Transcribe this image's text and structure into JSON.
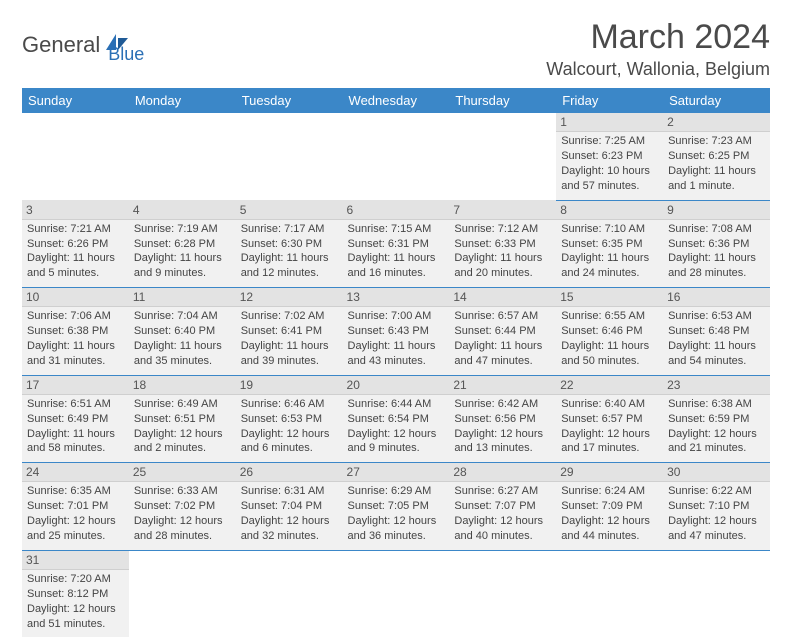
{
  "logo": {
    "text1": "General",
    "text2": "Blue"
  },
  "title": "March 2024",
  "location": "Walcourt, Wallonia, Belgium",
  "colors": {
    "header_bg": "#3b87c8",
    "header_fg": "#ffffff",
    "row_border": "#3b87c8",
    "daynum_bg": "#e3e3e3",
    "week_bg": "#f1f1f1",
    "logo_blue": "#2a6fb5",
    "text_gray": "#4a4a4a"
  },
  "day_headers": [
    "Sunday",
    "Monday",
    "Tuesday",
    "Wednesday",
    "Thursday",
    "Friday",
    "Saturday"
  ],
  "weeks": [
    [
      null,
      null,
      null,
      null,
      null,
      {
        "n": "1",
        "sr": "Sunrise: 7:25 AM",
        "ss": "Sunset: 6:23 PM",
        "dl": "Daylight: 10 hours and 57 minutes."
      },
      {
        "n": "2",
        "sr": "Sunrise: 7:23 AM",
        "ss": "Sunset: 6:25 PM",
        "dl": "Daylight: 11 hours and 1 minute."
      }
    ],
    [
      {
        "n": "3",
        "sr": "Sunrise: 7:21 AM",
        "ss": "Sunset: 6:26 PM",
        "dl": "Daylight: 11 hours and 5 minutes."
      },
      {
        "n": "4",
        "sr": "Sunrise: 7:19 AM",
        "ss": "Sunset: 6:28 PM",
        "dl": "Daylight: 11 hours and 9 minutes."
      },
      {
        "n": "5",
        "sr": "Sunrise: 7:17 AM",
        "ss": "Sunset: 6:30 PM",
        "dl": "Daylight: 11 hours and 12 minutes."
      },
      {
        "n": "6",
        "sr": "Sunrise: 7:15 AM",
        "ss": "Sunset: 6:31 PM",
        "dl": "Daylight: 11 hours and 16 minutes."
      },
      {
        "n": "7",
        "sr": "Sunrise: 7:12 AM",
        "ss": "Sunset: 6:33 PM",
        "dl": "Daylight: 11 hours and 20 minutes."
      },
      {
        "n": "8",
        "sr": "Sunrise: 7:10 AM",
        "ss": "Sunset: 6:35 PM",
        "dl": "Daylight: 11 hours and 24 minutes."
      },
      {
        "n": "9",
        "sr": "Sunrise: 7:08 AM",
        "ss": "Sunset: 6:36 PM",
        "dl": "Daylight: 11 hours and 28 minutes."
      }
    ],
    [
      {
        "n": "10",
        "sr": "Sunrise: 7:06 AM",
        "ss": "Sunset: 6:38 PM",
        "dl": "Daylight: 11 hours and 31 minutes."
      },
      {
        "n": "11",
        "sr": "Sunrise: 7:04 AM",
        "ss": "Sunset: 6:40 PM",
        "dl": "Daylight: 11 hours and 35 minutes."
      },
      {
        "n": "12",
        "sr": "Sunrise: 7:02 AM",
        "ss": "Sunset: 6:41 PM",
        "dl": "Daylight: 11 hours and 39 minutes."
      },
      {
        "n": "13",
        "sr": "Sunrise: 7:00 AM",
        "ss": "Sunset: 6:43 PM",
        "dl": "Daylight: 11 hours and 43 minutes."
      },
      {
        "n": "14",
        "sr": "Sunrise: 6:57 AM",
        "ss": "Sunset: 6:44 PM",
        "dl": "Daylight: 11 hours and 47 minutes."
      },
      {
        "n": "15",
        "sr": "Sunrise: 6:55 AM",
        "ss": "Sunset: 6:46 PM",
        "dl": "Daylight: 11 hours and 50 minutes."
      },
      {
        "n": "16",
        "sr": "Sunrise: 6:53 AM",
        "ss": "Sunset: 6:48 PM",
        "dl": "Daylight: 11 hours and 54 minutes."
      }
    ],
    [
      {
        "n": "17",
        "sr": "Sunrise: 6:51 AM",
        "ss": "Sunset: 6:49 PM",
        "dl": "Daylight: 11 hours and 58 minutes."
      },
      {
        "n": "18",
        "sr": "Sunrise: 6:49 AM",
        "ss": "Sunset: 6:51 PM",
        "dl": "Daylight: 12 hours and 2 minutes."
      },
      {
        "n": "19",
        "sr": "Sunrise: 6:46 AM",
        "ss": "Sunset: 6:53 PM",
        "dl": "Daylight: 12 hours and 6 minutes."
      },
      {
        "n": "20",
        "sr": "Sunrise: 6:44 AM",
        "ss": "Sunset: 6:54 PM",
        "dl": "Daylight: 12 hours and 9 minutes."
      },
      {
        "n": "21",
        "sr": "Sunrise: 6:42 AM",
        "ss": "Sunset: 6:56 PM",
        "dl": "Daylight: 12 hours and 13 minutes."
      },
      {
        "n": "22",
        "sr": "Sunrise: 6:40 AM",
        "ss": "Sunset: 6:57 PM",
        "dl": "Daylight: 12 hours and 17 minutes."
      },
      {
        "n": "23",
        "sr": "Sunrise: 6:38 AM",
        "ss": "Sunset: 6:59 PM",
        "dl": "Daylight: 12 hours and 21 minutes."
      }
    ],
    [
      {
        "n": "24",
        "sr": "Sunrise: 6:35 AM",
        "ss": "Sunset: 7:01 PM",
        "dl": "Daylight: 12 hours and 25 minutes."
      },
      {
        "n": "25",
        "sr": "Sunrise: 6:33 AM",
        "ss": "Sunset: 7:02 PM",
        "dl": "Daylight: 12 hours and 28 minutes."
      },
      {
        "n": "26",
        "sr": "Sunrise: 6:31 AM",
        "ss": "Sunset: 7:04 PM",
        "dl": "Daylight: 12 hours and 32 minutes."
      },
      {
        "n": "27",
        "sr": "Sunrise: 6:29 AM",
        "ss": "Sunset: 7:05 PM",
        "dl": "Daylight: 12 hours and 36 minutes."
      },
      {
        "n": "28",
        "sr": "Sunrise: 6:27 AM",
        "ss": "Sunset: 7:07 PM",
        "dl": "Daylight: 12 hours and 40 minutes."
      },
      {
        "n": "29",
        "sr": "Sunrise: 6:24 AM",
        "ss": "Sunset: 7:09 PM",
        "dl": "Daylight: 12 hours and 44 minutes."
      },
      {
        "n": "30",
        "sr": "Sunrise: 6:22 AM",
        "ss": "Sunset: 7:10 PM",
        "dl": "Daylight: 12 hours and 47 minutes."
      }
    ],
    [
      {
        "n": "31",
        "sr": "Sunrise: 7:20 AM",
        "ss": "Sunset: 8:12 PM",
        "dl": "Daylight: 12 hours and 51 minutes."
      },
      null,
      null,
      null,
      null,
      null,
      null
    ]
  ]
}
